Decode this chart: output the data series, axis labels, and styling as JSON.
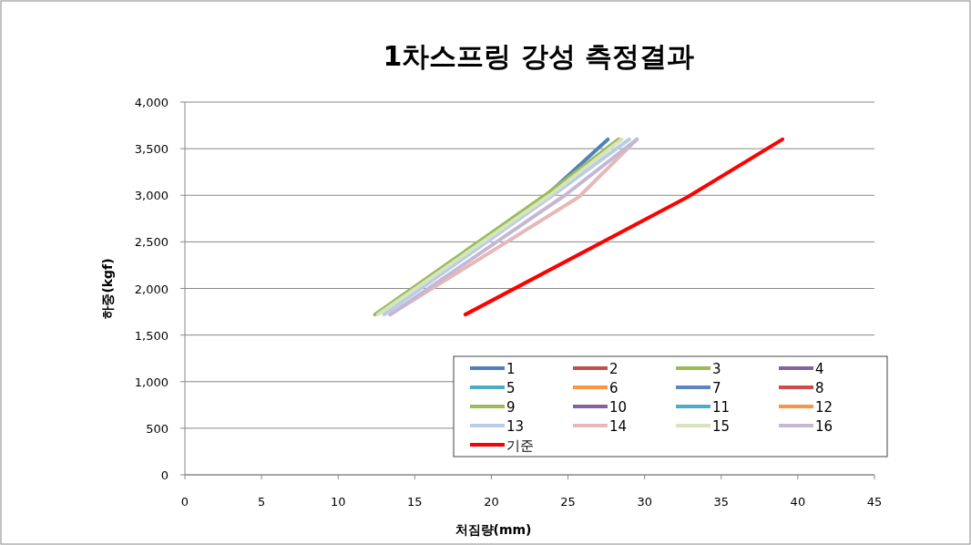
{
  "chart_data": {
    "type": "line",
    "title": "1차스프링 강성 측정결과",
    "xlabel": "처짐량(mm)",
    "ylabel": "하중(kgf)",
    "xlim": [
      0,
      45
    ],
    "xticks": [
      0,
      5,
      10,
      15,
      20,
      25,
      30,
      35,
      40,
      45
    ],
    "ylim": [
      0,
      4000
    ],
    "yticks": [
      0,
      {
        "value": 500,
        "label": "500"
      },
      {
        "value": 1000,
        "label": "1,000"
      },
      {
        "value": 1500,
        "label": "1,500"
      },
      {
        "value": 2000,
        "label": "2,000"
      },
      {
        "value": 2500,
        "label": "2,500"
      },
      {
        "value": 3000,
        "label": "3,000"
      },
      {
        "value": 3500,
        "label": "3,500"
      },
      {
        "value": 4000,
        "label": "4,000"
      }
    ],
    "grid": "y",
    "legend": "bottom right",
    "marker": "none",
    "line_style": "solid",
    "series": [
      {
        "name": "1",
        "color": "#4f81bd",
        "x": [
          null,
          23.6,
          27.6
        ],
        "values": [
          null,
          3000,
          3600
        ]
      },
      {
        "name": "2",
        "color": "#c0504d",
        "values": [
          null,
          null,
          null
        ]
      },
      {
        "name": "3",
        "color": "#9bbb59",
        "values": [
          null,
          null,
          null
        ]
      },
      {
        "name": "4",
        "color": "#8064a2",
        "values": [
          null,
          null,
          null
        ]
      },
      {
        "name": "5",
        "color": "#4bacc6",
        "values": [
          null,
          null,
          null
        ]
      },
      {
        "name": "6",
        "color": "#f79646",
        "values": [
          null,
          null,
          null
        ]
      },
      {
        "name": "7",
        "color": "#5b86c3",
        "values": [
          null,
          null,
          null
        ]
      },
      {
        "name": "8",
        "color": "#d04a4a",
        "values": [
          null,
          null,
          null
        ]
      },
      {
        "name": "9",
        "color": "#9bbb59",
        "x": [
          12.4,
          23.5,
          28.3
        ],
        "values": [
          1720,
          3000,
          3600
        ]
      },
      {
        "name": "10",
        "color": "#8064a2",
        "values": [
          null,
          null,
          null
        ]
      },
      {
        "name": "11",
        "color": "#4bacc6",
        "values": [
          null,
          null,
          null
        ]
      },
      {
        "name": "12",
        "color": "#f79646",
        "values": [
          null,
          null,
          null
        ]
      },
      {
        "name": "13",
        "color": "#b9cde5",
        "x": [
          13.0,
          24.0,
          29.0
        ],
        "values": [
          1720,
          3000,
          3600
        ]
      },
      {
        "name": "14",
        "color": "#e6b9b8",
        "x": [
          13.4,
          25.7,
          29.5
        ],
        "values": [
          1720,
          2980,
          3600
        ]
      },
      {
        "name": "15",
        "color": "#d7e4bd",
        "x": [
          12.6,
          23.8,
          28.5
        ],
        "values": [
          1720,
          3000,
          3600
        ]
      },
      {
        "name": "16",
        "color": "#c4b8d4",
        "x": [
          13.4,
          24.8,
          29.5
        ],
        "values": [
          1720,
          3000,
          3600
        ]
      },
      {
        "name": "기준",
        "color": "#ff0000",
        "x": [
          18.3,
          32.8,
          39.0
        ],
        "values": [
          1720,
          2980,
          3600
        ]
      }
    ]
  }
}
